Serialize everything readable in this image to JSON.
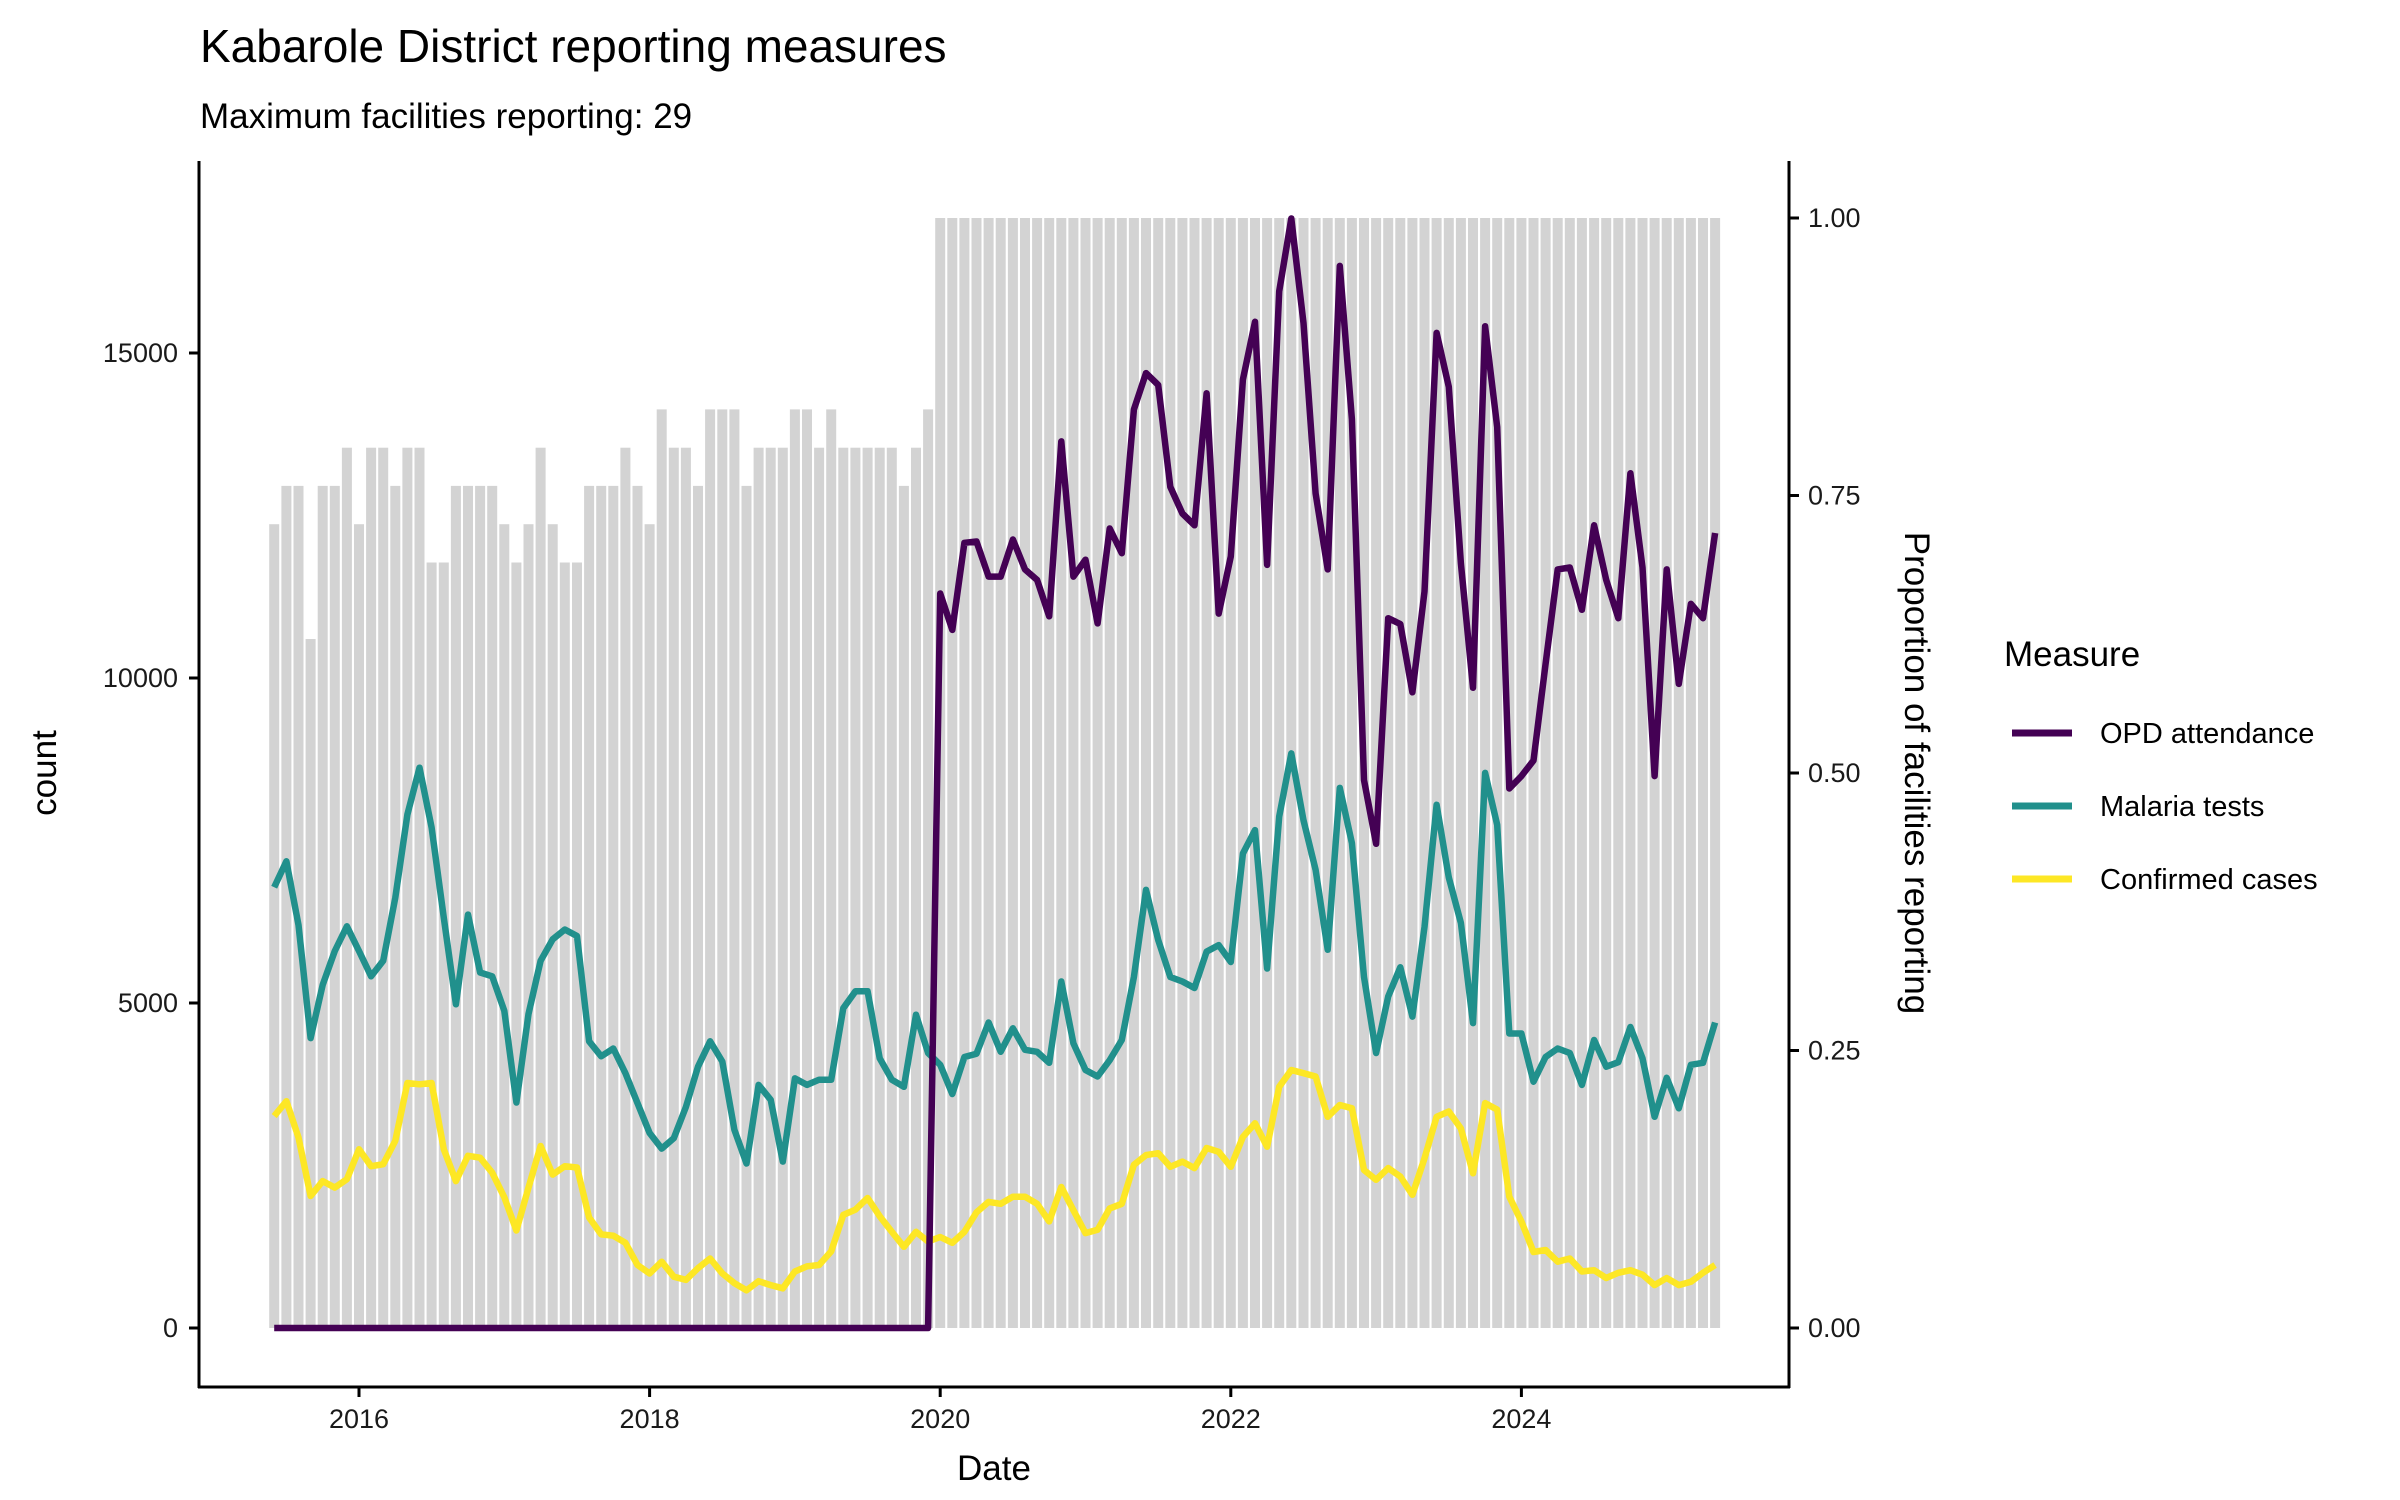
{
  "chart_data": {
    "type": "bar+line",
    "title": "Kabarole District reporting measures",
    "subtitle": "Maximum facilities reporting: 29",
    "max_facilities": 29,
    "xlabel": "Date",
    "ylabel": "count",
    "y2label": "Proportion of facilities reporting",
    "x_start": "2015-06",
    "x_frequency": "monthly",
    "n_periods": 120,
    "xlim": [
      2014.92,
      2025.75
    ],
    "ylim": [
      -800,
      17600
    ],
    "y2lim": [
      0,
      1
    ],
    "x_ticks": [
      "2016",
      "2018",
      "2020",
      "2022",
      "2024"
    ],
    "y_ticks": [
      "0",
      "5000",
      "10000",
      "15000"
    ],
    "y2_ticks": [
      "0.00",
      "0.25",
      "0.50",
      "0.75",
      "1.00"
    ],
    "grid": false,
    "legend": {
      "title": "Measure",
      "placement": "right",
      "entries": [
        "OPD attendance",
        "Malaria tests",
        "Confirmed cases"
      ]
    },
    "bar_color": "#D3D3D3",
    "facilities_reporting": [
      21,
      22,
      22,
      18,
      22,
      22,
      23,
      21,
      23,
      23,
      22,
      23,
      23,
      20,
      20,
      22,
      22,
      22,
      22,
      21,
      20,
      21,
      23,
      21,
      20,
      20,
      22,
      22,
      22,
      23,
      22,
      21,
      24,
      23,
      23,
      22,
      24,
      24,
      24,
      22,
      23,
      23,
      23,
      24,
      24,
      23,
      24,
      23,
      23,
      23,
      23,
      23,
      22,
      23,
      24,
      29,
      29,
      29,
      29,
      29,
      29,
      29,
      29,
      29,
      29,
      29,
      29,
      29,
      29,
      29,
      29,
      29,
      29,
      29,
      29,
      29,
      29,
      29,
      29,
      29,
      29,
      29,
      29,
      29,
      29,
      29,
      29,
      29,
      29,
      29,
      29,
      29,
      29,
      29,
      29,
      29,
      29,
      29,
      29,
      29,
      29,
      29,
      29,
      29,
      29,
      29,
      29,
      29,
      29,
      29,
      29,
      29,
      29,
      29,
      29,
      29,
      29,
      29,
      29,
      29
    ],
    "series": [
      {
        "name": "OPD attendance",
        "color": "#440154",
        "values": [
          0,
          0,
          0,
          0,
          0,
          0,
          0,
          0,
          0,
          0,
          0,
          0,
          0,
          0,
          0,
          0,
          0,
          0,
          0,
          0,
          0,
          0,
          0,
          0,
          0,
          0,
          0,
          0,
          0,
          0,
          0,
          0,
          0,
          0,
          0,
          0,
          0,
          0,
          0,
          0,
          0,
          0,
          0,
          0,
          0,
          0,
          0,
          0,
          0,
          0,
          0,
          0,
          0,
          0,
          0,
          11300,
          10740,
          12080,
          12100,
          11560,
          11560,
          12130,
          11670,
          11510,
          10950,
          13640,
          11560,
          11820,
          10840,
          12300,
          11920,
          14130,
          14690,
          14510,
          12940,
          12530,
          12350,
          14380,
          10990,
          11870,
          14590,
          15480,
          11740,
          15950,
          17070,
          15460,
          12840,
          11670,
          16340,
          13980,
          8430,
          7450,
          10920,
          10830,
          9780,
          11330,
          15310,
          14480,
          11760,
          9850,
          15410,
          13860,
          8300,
          8490,
          8730,
          10220,
          11670,
          11700,
          11050,
          12350,
          11510,
          10920,
          13150,
          11700,
          8490,
          11670,
          9910,
          11140,
          10920,
          12230
        ]
      },
      {
        "name": "Malaria tests",
        "color": "#21908C",
        "values": [
          6780,
          7180,
          6200,
          4460,
          5280,
          5800,
          6180,
          5800,
          5410,
          5650,
          6620,
          7900,
          8620,
          7700,
          6310,
          4980,
          6360,
          5470,
          5410,
          4880,
          3470,
          4830,
          5650,
          5980,
          6130,
          6030,
          4410,
          4180,
          4300,
          3920,
          3460,
          3000,
          2760,
          2920,
          3400,
          4020,
          4410,
          4100,
          3050,
          2530,
          3740,
          3510,
          2560,
          3840,
          3740,
          3820,
          3820,
          4920,
          5180,
          5180,
          4150,
          3820,
          3710,
          4820,
          4230,
          4050,
          3600,
          4170,
          4220,
          4700,
          4250,
          4610,
          4280,
          4250,
          4080,
          5330,
          4380,
          3970,
          3870,
          4120,
          4430,
          5400,
          6740,
          5970,
          5400,
          5330,
          5230,
          5790,
          5890,
          5630,
          7300,
          7660,
          5530,
          7870,
          8840,
          7810,
          7050,
          5820,
          8310,
          7460,
          5400,
          4230,
          5100,
          5550,
          4790,
          6170,
          8050,
          6930,
          6230,
          4690,
          8540,
          7740,
          4530,
          4530,
          3790,
          4170,
          4300,
          4230,
          3740,
          4430,
          4020,
          4090,
          4630,
          4150,
          3250,
          3850,
          3380,
          4050,
          4080,
          4700
        ]
      },
      {
        "name": "Confirmed cases",
        "color": "#FDE725",
        "values": [
          3260,
          3490,
          2930,
          2030,
          2260,
          2160,
          2290,
          2750,
          2490,
          2520,
          2880,
          3770,
          3750,
          3770,
          2750,
          2260,
          2650,
          2620,
          2390,
          2010,
          1500,
          2160,
          2800,
          2360,
          2490,
          2470,
          1700,
          1440,
          1420,
          1310,
          970,
          840,
          1020,
          790,
          740,
          920,
          1070,
          840,
          690,
          580,
          720,
          660,
          610,
          870,
          950,
          970,
          1180,
          1740,
          1820,
          2000,
          1720,
          1480,
          1250,
          1480,
          1330,
          1400,
          1310,
          1480,
          1780,
          1940,
          1910,
          2020,
          2020,
          1910,
          1640,
          2170,
          1810,
          1460,
          1510,
          1840,
          1910,
          2510,
          2660,
          2690,
          2480,
          2560,
          2460,
          2770,
          2710,
          2480,
          2940,
          3150,
          2790,
          3710,
          3970,
          3920,
          3870,
          3250,
          3430,
          3380,
          2430,
          2280,
          2460,
          2330,
          2050,
          2610,
          3250,
          3330,
          3070,
          2380,
          3460,
          3360,
          2020,
          1640,
          1170,
          1200,
          1020,
          1070,
          870,
          890,
          770,
          850,
          890,
          820,
          660,
          770,
          660,
          710,
          850,
          970
        ]
      }
    ]
  }
}
